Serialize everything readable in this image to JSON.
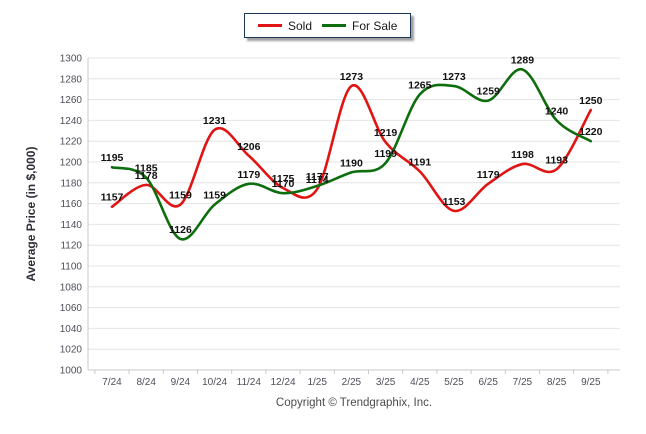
{
  "chart_data": {
    "type": "line",
    "title": "",
    "x": [
      "7/24",
      "8/24",
      "9/24",
      "10/24",
      "11/24",
      "12/24",
      "1/25",
      "2/25",
      "3/25",
      "4/25",
      "5/25",
      "6/25",
      "7/25",
      "8/25",
      "9/25"
    ],
    "series": [
      {
        "name": "Sold",
        "color": "#e11414",
        "values": [
          1157,
          1178,
          1159,
          1231,
          1206,
          1175,
          1174,
          1273,
          1219,
          1191,
          1153,
          1179,
          1198,
          1193,
          1250
        ]
      },
      {
        "name": "For Sale",
        "color": "#0e6e0e",
        "values": [
          1195,
          1185,
          1126,
          1159,
          1179,
          1170,
          1177,
          1190,
          1199,
          1265,
          1273,
          1259,
          1289,
          1240,
          1220
        ]
      }
    ],
    "xlabel": "",
    "ylabel": "Average Price (in $,000)",
    "ylim": [
      1000,
      1300
    ],
    "ytick_step": 20,
    "grid": true,
    "legend_position": "top-center"
  },
  "footer": {
    "copyright": "Copyright © Trendgraphix, Inc."
  },
  "colors": {
    "grid": "#e4e4e4",
    "axis": "#c9c9c9",
    "tick_text": "#4e4e5a",
    "data_label_text": "#111111",
    "legend_border": "#1b365d"
  }
}
